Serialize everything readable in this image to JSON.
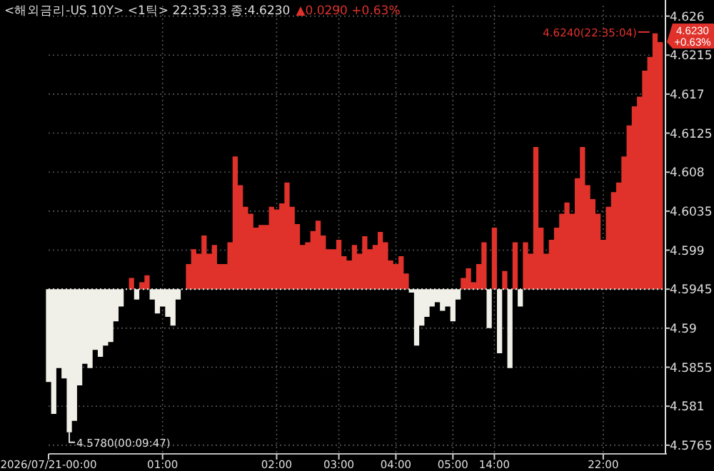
{
  "chart_data": {
    "type": "area",
    "title": "<해외금리-US 10Y> <1틱> 22:35:33 종:4.6230",
    "subtitle": "▲0.0290 +0.63%",
    "ylim": [
      4.5755,
      4.6272
    ],
    "categories": [
      "2026/07/21-00:00",
      null,
      null,
      null,
      null,
      null,
      null,
      null,
      null,
      null,
      null,
      null,
      null,
      null,
      null,
      null,
      null,
      null,
      null,
      null,
      null,
      null,
      "01:00",
      null,
      null,
      null,
      null,
      null,
      null,
      null,
      null,
      null,
      null,
      null,
      null,
      null,
      null,
      null,
      null,
      null,
      null,
      null,
      null,
      null,
      "02:00",
      null,
      null,
      null,
      null,
      null,
      null,
      null,
      null,
      null,
      null,
      null,
      "03:00",
      null,
      null,
      null,
      null,
      null,
      null,
      null,
      null,
      null,
      null,
      "04:00",
      null,
      null,
      null,
      null,
      null,
      null,
      null,
      null,
      null,
      null,
      "05:00",
      null,
      null,
      null,
      null,
      null,
      null,
      null,
      "14:00",
      null,
      null,
      null,
      null,
      null,
      null,
      null,
      null,
      null,
      null,
      null,
      null,
      null,
      null,
      null,
      null,
      null,
      null,
      null,
      null,
      "22:00",
      null,
      null,
      null,
      null,
      null,
      null,
      null,
      null,
      null,
      null,
      null
    ],
    "yticks": [
      4.5765,
      4.581,
      4.5855,
      4.59,
      4.5945,
      4.599,
      4.6035,
      4.608,
      4.6125,
      4.617,
      4.6215,
      4.626
    ],
    "grid": true,
    "ref_lines": [
      {
        "axis": "y",
        "value": 4.5945,
        "color": "#f0f0e8",
        "line_style": "dotted"
      }
    ],
    "annotations": [
      "4.5780(00:09:47)",
      "4.6240(22:35:04)",
      "4.6230 +0.63%"
    ],
    "series": [
      {
        "color": "#e0322b",
        "values": [
          4.5838,
          4.5801,
          4.5854,
          4.5842,
          4.578,
          4.5793,
          4.5834,
          4.5859,
          4.5854,
          4.5875,
          4.5867,
          4.588,
          4.5884,
          4.5908,
          4.5925,
          4.5945,
          4.5958,
          4.5933,
          4.5953,
          4.5961,
          4.5933,
          4.5917,
          4.5925,
          4.5913,
          4.5903,
          4.5933,
          4.5945,
          4.5974,
          4.5991,
          4.5986,
          4.6007,
          4.5986,
          4.5996,
          4.5974,
          4.5974,
          4.5999,
          4.6098,
          4.6065,
          4.604,
          4.6032,
          4.6016,
          4.6019,
          4.6019,
          4.604,
          4.6037,
          4.6044,
          4.6068,
          4.604,
          4.602,
          4.5996,
          4.5999,
          4.6012,
          4.6024,
          4.6007,
          4.5991,
          4.5991,
          4.6002,
          4.5983,
          4.5978,
          4.5996,
          4.5986,
          4.6006,
          4.5991,
          4.5996,
          4.6011,
          4.5999,
          4.5978,
          4.5974,
          4.5983,
          4.5963,
          4.5941,
          4.588,
          4.5903,
          4.5913,
          4.5925,
          4.593,
          4.592,
          4.5925,
          4.5908,
          4.5933,
          4.5958,
          4.5969,
          4.5953,
          4.5974,
          4.5999,
          4.59,
          4.6016,
          4.5871,
          4.5966,
          4.5854,
          4.5999,
          4.5925,
          4.5999,
          4.5986,
          4.6109,
          4.6016,
          4.5986,
          4.6002,
          4.6016,
          4.6032,
          4.6045,
          4.6032,
          4.6073,
          4.6109,
          4.6065,
          4.6049,
          4.6032,
          4.6002,
          4.604,
          4.6057,
          4.6068,
          4.6098,
          4.6134,
          4.6156,
          4.6167,
          4.6197,
          4.6213,
          4.624,
          4.623
        ]
      }
    ]
  }
}
